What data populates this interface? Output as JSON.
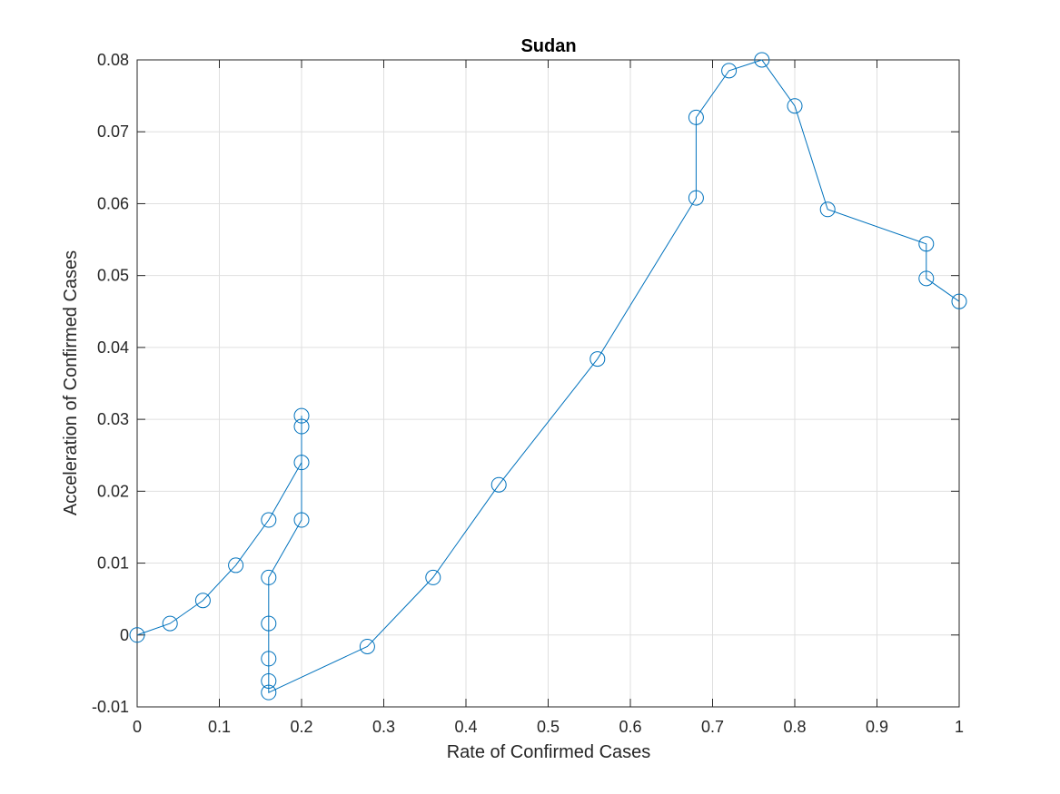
{
  "chart_data": {
    "type": "line",
    "title": "Sudan",
    "xlabel": "Rate of Confirmed Cases",
    "ylabel": "Acceleration of Confirmed Cases",
    "xlim": [
      0,
      1
    ],
    "ylim": [
      -0.01,
      0.08
    ],
    "xticks": [
      0,
      0.1,
      0.2,
      0.3,
      0.4,
      0.5,
      0.6,
      0.7,
      0.8,
      0.9,
      1
    ],
    "xtick_labels": [
      "0",
      "0.1",
      "0.2",
      "0.3",
      "0.4",
      "0.5",
      "0.6",
      "0.7",
      "0.8",
      "0.9",
      "1"
    ],
    "yticks": [
      -0.01,
      0,
      0.01,
      0.02,
      0.03,
      0.04,
      0.05,
      0.06,
      0.07,
      0.08
    ],
    "ytick_labels": [
      "-0.01",
      "0",
      "0.01",
      "0.02",
      "0.03",
      "0.04",
      "0.05",
      "0.06",
      "0.07",
      "0.08"
    ],
    "grid": true,
    "marker": "circle",
    "line_color": "#0072BD",
    "series": [
      {
        "x": [
          0,
          0.04,
          0.08,
          0.12,
          0.16,
          0.2,
          0.2,
          0.2,
          0.2,
          0.16,
          0.16,
          0.16,
          0.16,
          0.16,
          0.28,
          0.36,
          0.44,
          0.56,
          0.68,
          0.68,
          0.72,
          0.76,
          0.8,
          0.84,
          0.96,
          0.96,
          1
        ],
        "y": [
          0,
          0.0016,
          0.0048,
          0.0097,
          0.016,
          0.024,
          0.0305,
          0.029,
          0.016,
          0.008,
          0.0016,
          -0.0033,
          -0.0064,
          -0.008,
          -0.0016,
          0.008,
          0.0209,
          0.0384,
          0.0608,
          0.072,
          0.0785,
          0.08,
          0.0736,
          0.0592,
          0.0544,
          0.0496,
          0.0464
        ]
      }
    ]
  }
}
